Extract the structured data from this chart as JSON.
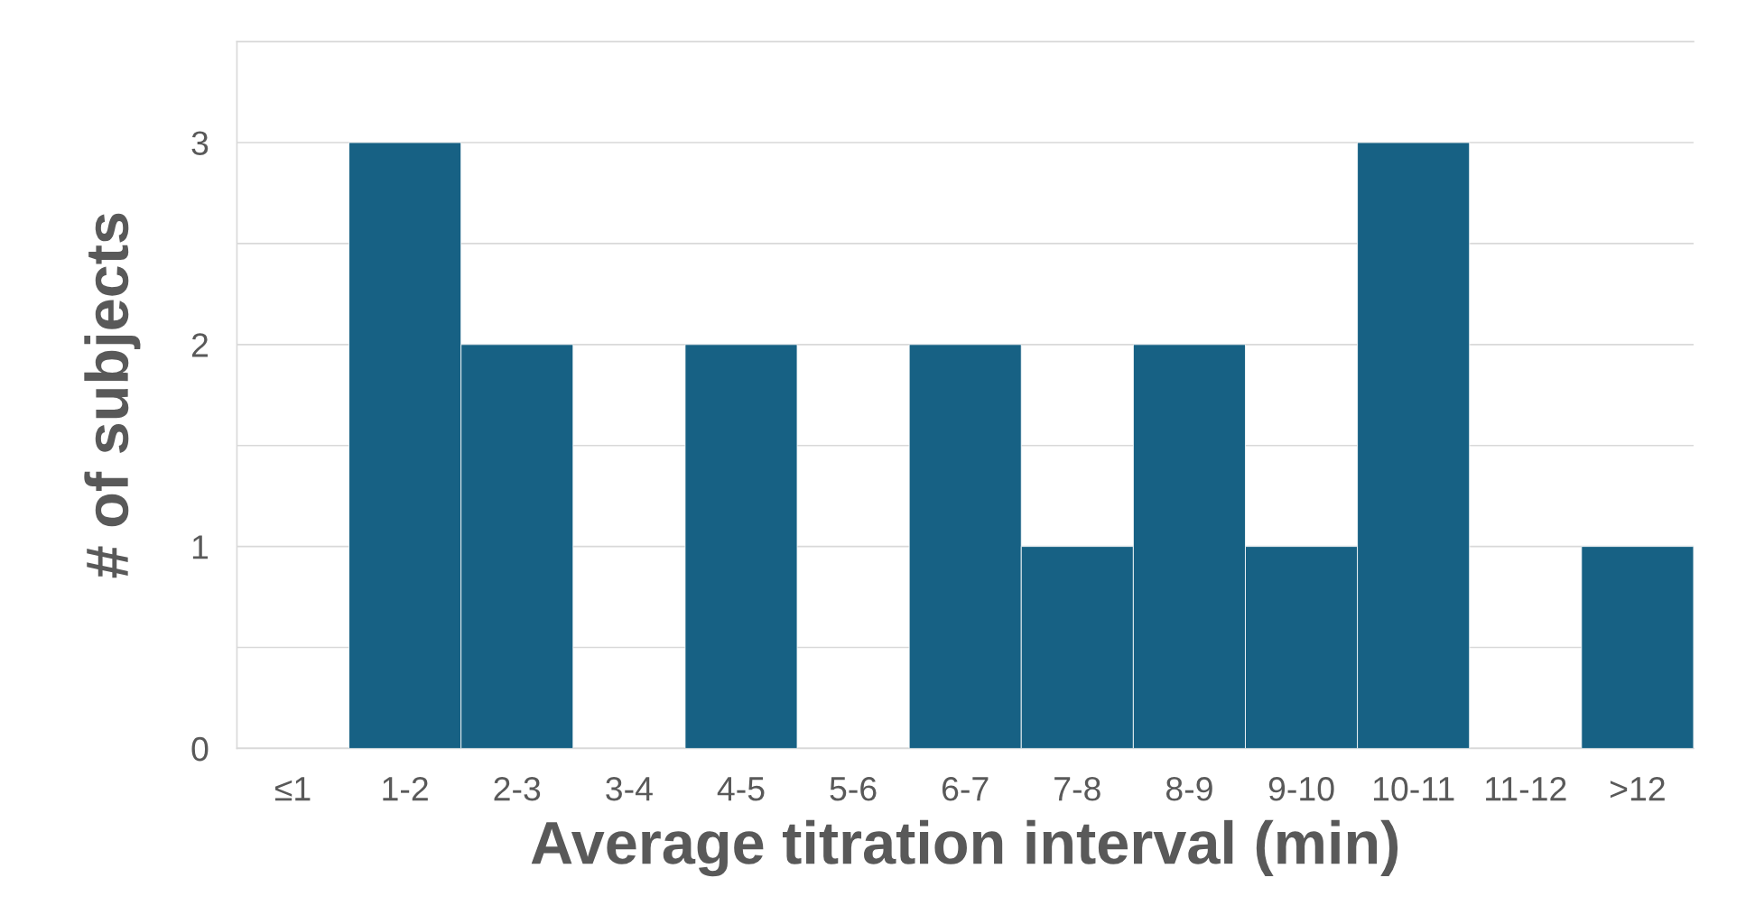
{
  "chart_data": {
    "type": "bar",
    "xlabel": "Average titration interval (min)",
    "ylabel": "# of subjects",
    "categories": [
      "≤1",
      "1-2",
      "2-3",
      "3-4",
      "4-5",
      "5-6",
      "6-7",
      "7-8",
      "8-9",
      "9-10",
      "10-11",
      "11-12",
      ">12"
    ],
    "values": [
      0,
      3,
      2,
      0,
      2,
      0,
      2,
      1,
      2,
      1,
      3,
      0,
      1
    ],
    "color": "#176184",
    "ylim": [
      0,
      3.5
    ],
    "yticks": [
      0,
      {
        "value": 0.5,
        "label": null
      },
      1,
      {
        "value": 1.5,
        "label": null
      },
      2,
      {
        "value": 2.5,
        "label": null
      },
      3,
      {
        "value": 3.5,
        "label": null
      }
    ],
    "grid": "y",
    "legend": false
  }
}
